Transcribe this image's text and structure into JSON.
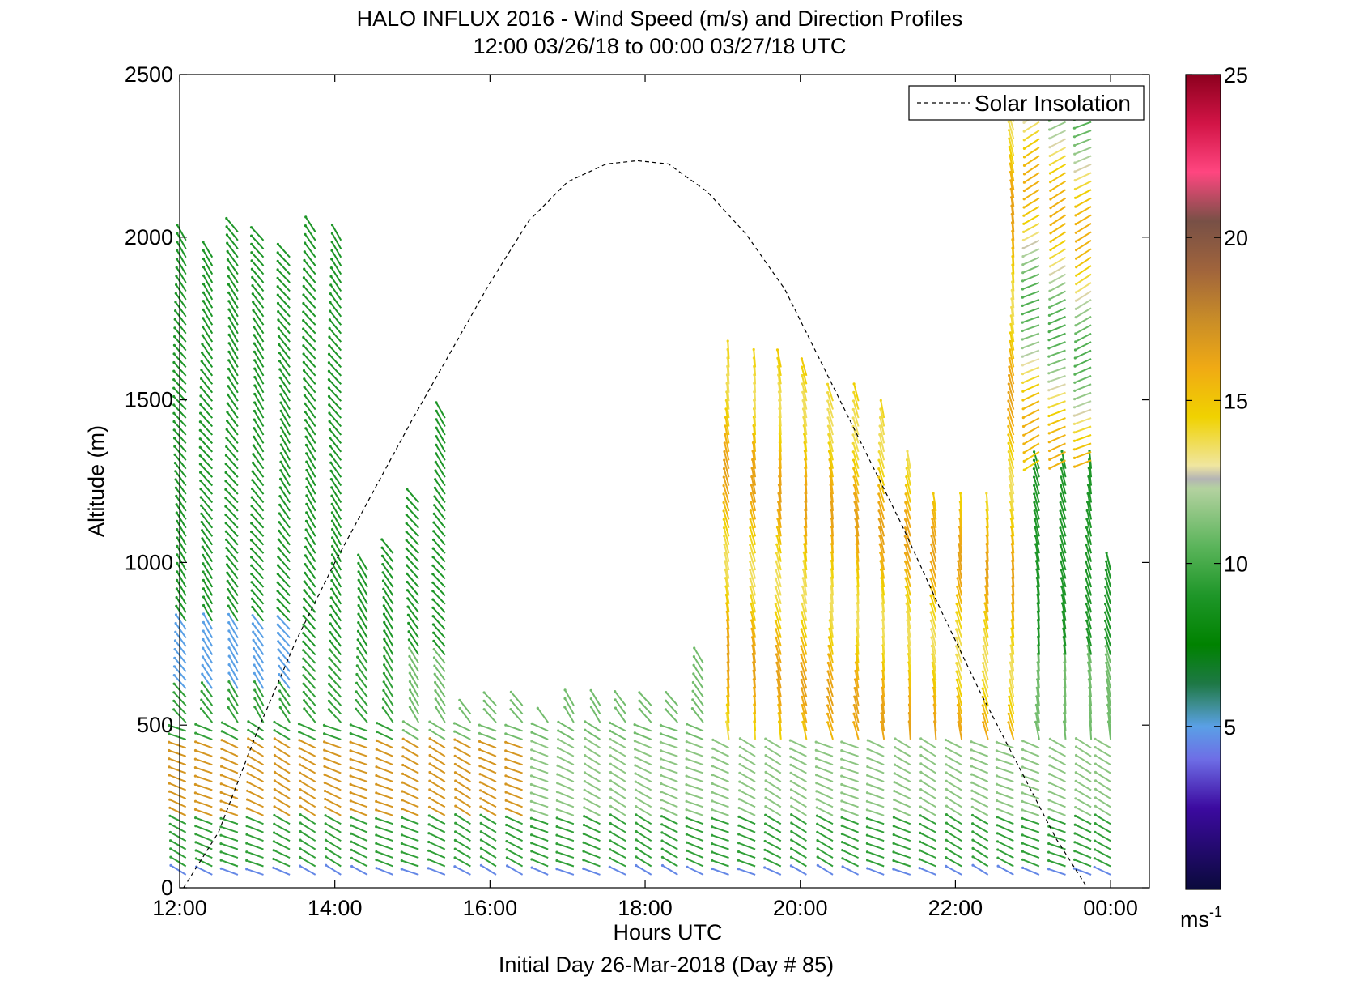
{
  "chart_data": {
    "type": "scatter",
    "title": "HALO INFLUX 2016 - Wind Speed (m/s) and Direction Profiles",
    "subtitle": "12:00 03/26/18 to 00:00 03/27/18  UTC",
    "xlabel": "Hours UTC",
    "xlabel2": "Initial Day 26-Mar-2018 (Day # 85)",
    "ylabel": "Altitude (m)",
    "xlim": [
      12,
      24.5
    ],
    "ylim": [
      0,
      2500
    ],
    "x_ticks": [
      {
        "value": 12,
        "label": "12:00"
      },
      {
        "value": 14,
        "label": "14:00"
      },
      {
        "value": 16,
        "label": "16:00"
      },
      {
        "value": 18,
        "label": "18:00"
      },
      {
        "value": 20,
        "label": "20:00"
      },
      {
        "value": 22,
        "label": "22:00"
      },
      {
        "value": 24,
        "label": "00:00"
      }
    ],
    "y_ticks": [
      {
        "value": 0,
        "label": "0"
      },
      {
        "value": 500,
        "label": "500"
      },
      {
        "value": 1000,
        "label": "1000"
      },
      {
        "value": 1500,
        "label": "1500"
      },
      {
        "value": 2000,
        "label": "2000"
      },
      {
        "value": 2500,
        "label": "2500"
      }
    ],
    "legend": {
      "placement": "top-right",
      "entries": [
        {
          "name": "Solar Insolation",
          "style": "dashed",
          "color": "#000000"
        }
      ]
    },
    "solar_insolation": {
      "x": [
        12.05,
        12.5,
        13,
        13.5,
        14,
        14.5,
        15,
        15.5,
        16,
        16.5,
        17,
        17.5,
        17.9,
        18.3,
        18.8,
        19.3,
        19.8,
        20.3,
        20.8,
        21.3,
        21.8,
        22.3,
        22.8,
        23.3,
        23.7
      ],
      "y": [
        0,
        170,
        480,
        760,
        1000,
        1220,
        1440,
        1650,
        1860,
        2050,
        2170,
        2225,
        2235,
        2225,
        2140,
        2010,
        1840,
        1600,
        1360,
        1120,
        860,
        610,
        380,
        150,
        0
      ]
    },
    "colorbar": {
      "range": [
        0,
        25
      ],
      "ticks": [
        5,
        10,
        15,
        20,
        25
      ],
      "unit_label": "ms",
      "unit_superscript": "-1",
      "stops": [
        {
          "v": 0,
          "color": "#0a0a3c"
        },
        {
          "v": 2.5,
          "color": "#3c0aa0"
        },
        {
          "v": 4,
          "color": "#6e6ee6"
        },
        {
          "v": 5,
          "color": "#5aa0e6"
        },
        {
          "v": 5.7,
          "color": "#3c8c8c"
        },
        {
          "v": 6.3,
          "color": "#1e7846"
        },
        {
          "v": 7.5,
          "color": "#008200"
        },
        {
          "v": 9,
          "color": "#1e9628"
        },
        {
          "v": 10.5,
          "color": "#5ab45a"
        },
        {
          "v": 12.3,
          "color": "#b4d2a0"
        },
        {
          "v": 12.6,
          "color": "#b4b4b4"
        },
        {
          "v": 13,
          "color": "#f0e6a0"
        },
        {
          "v": 14.5,
          "color": "#f0d200"
        },
        {
          "v": 16,
          "color": "#f0aa14"
        },
        {
          "v": 17.5,
          "color": "#c88c28"
        },
        {
          "v": 19,
          "color": "#a0643c"
        },
        {
          "v": 20.5,
          "color": "#785046"
        },
        {
          "v": 22,
          "color": "#ff4680"
        },
        {
          "v": 23.5,
          "color": "#d21446"
        },
        {
          "v": 25,
          "color": "#8c001e"
        }
      ]
    },
    "wind_profiles": {
      "columns": [
        {
          "x": 12.08,
          "top": 2000,
          "bottom": 40
        },
        {
          "x": 12.42,
          "top": 1960,
          "bottom": 40
        },
        {
          "x": 12.75,
          "top": 2040,
          "bottom": 40
        },
        {
          "x": 13.08,
          "top": 2000,
          "bottom": 40
        },
        {
          "x": 13.42,
          "top": 1960,
          "bottom": 40
        },
        {
          "x": 13.75,
          "top": 2040,
          "bottom": 40
        },
        {
          "x": 14.08,
          "top": 1990,
          "bottom": 40
        },
        {
          "x": 14.42,
          "top": 1000,
          "bottom": 40
        },
        {
          "x": 14.75,
          "top": 1050,
          "bottom": 40
        },
        {
          "x": 15.08,
          "top": 1200,
          "bottom": 40
        },
        {
          "x": 15.42,
          "top": 1450,
          "bottom": 40
        },
        {
          "x": 15.75,
          "top": 550,
          "bottom": 40
        },
        {
          "x": 16.08,
          "top": 580,
          "bottom": 40
        },
        {
          "x": 16.42,
          "top": 560,
          "bottom": 40
        },
        {
          "x": 16.75,
          "top": 520,
          "bottom": 40
        },
        {
          "x": 17.08,
          "top": 560,
          "bottom": 40
        },
        {
          "x": 17.42,
          "top": 570,
          "bottom": 40
        },
        {
          "x": 17.75,
          "top": 580,
          "bottom": 40
        },
        {
          "x": 18.08,
          "top": 580,
          "bottom": 40
        },
        {
          "x": 18.42,
          "top": 580,
          "bottom": 40
        },
        {
          "x": 18.75,
          "top": 700,
          "bottom": 40
        },
        {
          "x": 19.08,
          "top": 1650,
          "bottom": 40
        },
        {
          "x": 19.42,
          "top": 1620,
          "bottom": 40
        },
        {
          "x": 19.75,
          "top": 1600,
          "bottom": 40
        },
        {
          "x": 20.08,
          "top": 1580,
          "bottom": 40
        },
        {
          "x": 20.42,
          "top": 1500,
          "bottom": 40
        },
        {
          "x": 20.75,
          "top": 1500,
          "bottom": 40
        },
        {
          "x": 21.08,
          "top": 1450,
          "bottom": 40
        },
        {
          "x": 21.42,
          "top": 1300,
          "bottom": 40
        },
        {
          "x": 21.75,
          "top": 1160,
          "bottom": 40
        },
        {
          "x": 22.08,
          "top": 1160,
          "bottom": 40
        },
        {
          "x": 22.42,
          "top": 1180,
          "bottom": 40
        },
        {
          "x": 22.75,
          "top": 2380,
          "bottom": 40
        },
        {
          "x": 23.08,
          "top": 2420,
          "bottom": 40
        },
        {
          "x": 23.42,
          "top": 2440,
          "bottom": 40
        },
        {
          "x": 23.75,
          "top": 2480,
          "bottom": 40
        },
        {
          "x": 24.0,
          "top": 1000,
          "bottom": 40
        }
      ]
    }
  }
}
